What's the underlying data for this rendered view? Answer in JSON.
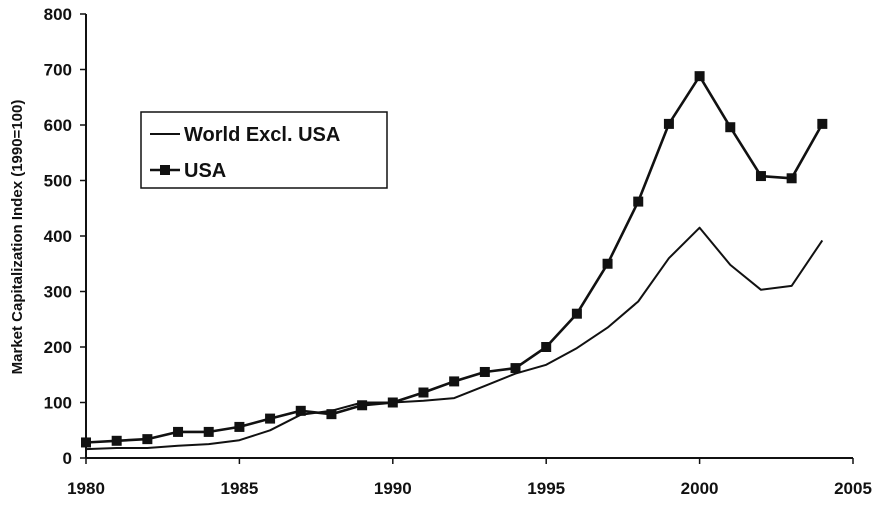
{
  "chart_data": {
    "type": "line",
    "title": "",
    "xlabel": "",
    "ylabel": "Market Capitalization Index (1990=100)",
    "xlim": [
      1980,
      2005
    ],
    "ylim": [
      0,
      800
    ],
    "x_ticks": [
      "1980",
      "1985",
      "1990",
      "1995",
      "2000",
      "2005"
    ],
    "y_ticks": [
      "0",
      "100",
      "200",
      "300",
      "400",
      "500",
      "600",
      "700",
      "800"
    ],
    "grid": false,
    "legend_position": "left",
    "x": [
      1980,
      1981,
      1982,
      1983,
      1984,
      1985,
      1986,
      1987,
      1988,
      1989,
      1990,
      1991,
      1992,
      1993,
      1994,
      1995,
      1996,
      1997,
      1998,
      1999,
      2000,
      2001,
      2002,
      2003,
      2004
    ],
    "series": [
      {
        "name": "World Excl. USA",
        "marker": "none",
        "color": "#111111",
        "values": [
          16,
          18,
          18,
          22,
          25,
          32,
          50,
          78,
          85,
          100,
          100,
          103,
          108,
          130,
          152,
          168,
          198,
          235,
          282,
          360,
          415,
          348,
          303,
          310,
          392
        ]
      },
      {
        "name": "USA",
        "marker": "square",
        "color": "#111111",
        "values": [
          28,
          31,
          34,
          47,
          47,
          56,
          71,
          85,
          79,
          95,
          100,
          118,
          138,
          155,
          162,
          200,
          260,
          350,
          462,
          602,
          688,
          596,
          508,
          504,
          602
        ]
      }
    ]
  }
}
